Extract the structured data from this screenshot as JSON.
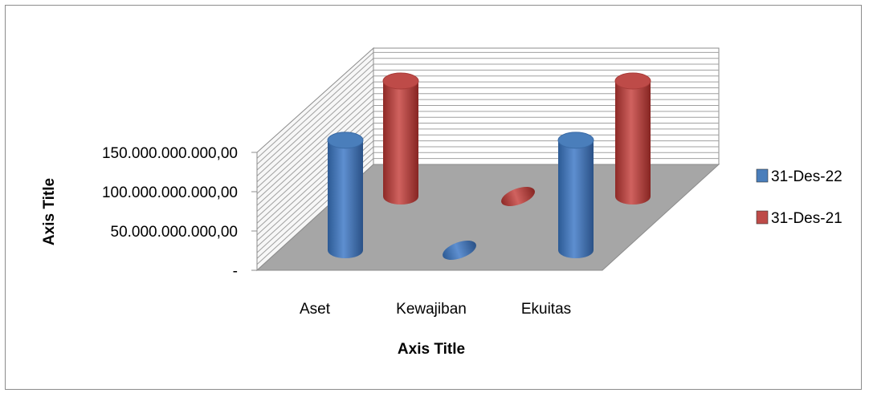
{
  "chart_data": {
    "type": "bar",
    "style": "3d-cylinder",
    "categories": [
      "Aset",
      "Kewajiban",
      "Ekuitas"
    ],
    "series": [
      {
        "name": "31-Des-22",
        "color": "#4a7ebb",
        "values": [
          148000000000,
          0,
          148000000000
        ]
      },
      {
        "name": "31-Des-21",
        "color": "#be4b48",
        "values": [
          150000000000,
          0,
          150000000000
        ]
      }
    ],
    "y_ticks": [
      "-",
      "50.000.000.000,00",
      "100.000.000.000,00",
      "150.000.000.000,00"
    ],
    "y_tick_values": [
      0,
      50000000000,
      100000000000,
      150000000000
    ],
    "ylim": [
      0,
      150000000000
    ],
    "xlabel": "Axis Title",
    "ylabel": "Axis Title",
    "legend_position": "right",
    "grid": true
  }
}
